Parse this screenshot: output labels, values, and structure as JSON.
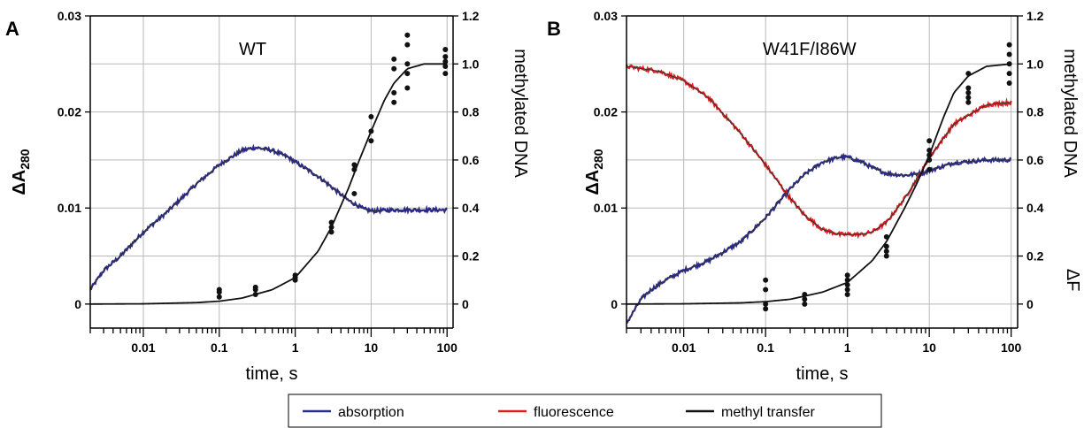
{
  "legend": {
    "items": [
      {
        "label": "absorption",
        "color": "#2b2b8f"
      },
      {
        "label": "fluorescence",
        "color": "#e02020"
      },
      {
        "label": "methyl transfer",
        "color": "#111111"
      }
    ]
  },
  "chart_data": [
    {
      "type": "line",
      "panel_label": "A",
      "annotation": "WT",
      "xlabel": "time, s",
      "xscale": "log",
      "xlim": [
        0.002,
        120
      ],
      "xticks": [
        0.01,
        0.1,
        1,
        10,
        100
      ],
      "xtick_labels": [
        "0.01",
        "0.1",
        "1",
        "10",
        "100"
      ],
      "ylabel_left": "ΔA",
      "ylabel_left_sub": "280",
      "ylabel_left_color": "#2b2b8f",
      "ylim_left": [
        -0.0025,
        0.03
      ],
      "yticks_left": [
        0,
        0.01,
        0.02,
        0.03
      ],
      "ytick_labels_left": [
        "0",
        "0.01",
        "0.02",
        "0.03"
      ],
      "ylabel_right": "methylated DNA",
      "ylabel_right2": "",
      "ylabel_right2_color": "#e02020",
      "ylim_right": [
        -0.1,
        1.2
      ],
      "yticks_right": [
        0,
        0.2,
        0.4,
        0.6,
        0.8,
        1.0,
        1.2
      ],
      "ytick_labels_right": [
        "0",
        "0.2",
        "0.4",
        "0.6",
        "0.8",
        "1.0",
        "1.2"
      ],
      "grid": true,
      "series": [
        {
          "kind": "absorption",
          "axis": "left",
          "noisy": true,
          "color": "#2b2b8f",
          "x": [
            0.002,
            0.003,
            0.005,
            0.01,
            0.02,
            0.05,
            0.1,
            0.2,
            0.3,
            0.5,
            0.8,
            1,
            2,
            3,
            5,
            8,
            10,
            20,
            50,
            100
          ],
          "y": [
            0.0015,
            0.0035,
            0.005,
            0.0075,
            0.0095,
            0.0125,
            0.0145,
            0.016,
            0.0163,
            0.016,
            0.0153,
            0.0148,
            0.0133,
            0.0122,
            0.0108,
            0.0099,
            0.0097,
            0.0098,
            0.0098,
            0.0098
          ]
        },
        {
          "kind": "methyl transfer",
          "axis": "right",
          "noisy": false,
          "color": "#111111",
          "x": [
            0.002,
            0.01,
            0.05,
            0.1,
            0.2,
            0.5,
            1,
            2,
            3,
            5,
            7,
            10,
            15,
            20,
            30,
            50,
            100
          ],
          "y": [
            0,
            0.001,
            0.006,
            0.012,
            0.025,
            0.06,
            0.11,
            0.22,
            0.32,
            0.48,
            0.6,
            0.72,
            0.85,
            0.92,
            0.98,
            1.0,
            1.0
          ]
        }
      ],
      "points": {
        "x": [
          0.1,
          0.1,
          0.1,
          0.3,
          0.3,
          0.3,
          1,
          1,
          1,
          3,
          3,
          3,
          6,
          6,
          6,
          10,
          10,
          10,
          20,
          20,
          20,
          20,
          30,
          30,
          30,
          30,
          30,
          95,
          95,
          95,
          95,
          95
        ],
        "y": [
          0.03,
          0.05,
          0.06,
          0.04,
          0.06,
          0.07,
          0.1,
          0.11,
          0.12,
          0.3,
          0.32,
          0.34,
          0.46,
          0.56,
          0.58,
          0.68,
          0.72,
          0.78,
          0.84,
          0.88,
          0.98,
          1.02,
          0.9,
          0.96,
          1.0,
          1.08,
          1.12,
          0.96,
          0.99,
          1.01,
          1.03,
          1.06
        ]
      }
    },
    {
      "type": "line",
      "panel_label": "B",
      "annotation": "W41F/I86W",
      "xlabel": "time, s",
      "xscale": "log",
      "xlim": [
        0.002,
        120
      ],
      "xticks": [
        0.01,
        0.1,
        1,
        10,
        100
      ],
      "xtick_labels": [
        "0.01",
        "0.1",
        "1",
        "10",
        "100"
      ],
      "ylabel_left": "ΔA",
      "ylabel_left_sub": "280",
      "ylabel_left_color": "#2b2b8f",
      "ylim_left": [
        -0.0025,
        0.03
      ],
      "yticks_left": [
        0,
        0.01,
        0.02,
        0.03
      ],
      "ytick_labels_left": [
        "0",
        "0.01",
        "0.02",
        "0.03"
      ],
      "ylabel_right": "methylated DNA",
      "ylabel_right2": "ΔF",
      "ylabel_right2_color": "#e02020",
      "ylim_right": [
        -0.1,
        1.2
      ],
      "yticks_right": [
        0,
        0.2,
        0.4,
        0.6,
        0.8,
        1.0,
        1.2
      ],
      "ytick_labels_right": [
        "0",
        "0.2",
        "0.4",
        "0.6",
        "0.8",
        "1.0",
        "1.2"
      ],
      "grid": true,
      "series": [
        {
          "kind": "absorption",
          "axis": "left",
          "noisy": true,
          "color": "#2b2b8f",
          "x": [
            0.002,
            0.003,
            0.004,
            0.006,
            0.01,
            0.02,
            0.05,
            0.1,
            0.2,
            0.3,
            0.5,
            0.8,
            1,
            1.5,
            2,
            3,
            5,
            8,
            10,
            20,
            50,
            100
          ],
          "y": [
            -0.002,
            0.0005,
            0.0015,
            0.0025,
            0.0035,
            0.0045,
            0.0065,
            0.009,
            0.012,
            0.0135,
            0.0148,
            0.0153,
            0.0153,
            0.0148,
            0.0142,
            0.0136,
            0.0134,
            0.0136,
            0.0139,
            0.0147,
            0.015,
            0.015
          ]
        },
        {
          "kind": "fluorescence",
          "axis": "right",
          "noisy": true,
          "color": "#e02020",
          "x": [
            0.002,
            0.005,
            0.01,
            0.02,
            0.05,
            0.1,
            0.2,
            0.3,
            0.5,
            0.8,
            1,
            1.5,
            2,
            3,
            5,
            8,
            10,
            20,
            50,
            100
          ],
          "y": [
            0.99,
            0.97,
            0.93,
            0.86,
            0.71,
            0.58,
            0.44,
            0.37,
            0.31,
            0.29,
            0.29,
            0.29,
            0.3,
            0.34,
            0.44,
            0.55,
            0.61,
            0.75,
            0.83,
            0.84
          ]
        },
        {
          "kind": "methyl transfer",
          "axis": "right",
          "noisy": false,
          "color": "#111111",
          "x": [
            0.002,
            0.01,
            0.05,
            0.1,
            0.2,
            0.5,
            1,
            2,
            3,
            5,
            7,
            10,
            15,
            20,
            30,
            50,
            100
          ],
          "y": [
            0,
            0.001,
            0.005,
            0.01,
            0.02,
            0.05,
            0.09,
            0.18,
            0.26,
            0.4,
            0.5,
            0.62,
            0.78,
            0.88,
            0.95,
            0.99,
            1.0
          ]
        }
      ],
      "points": {
        "x": [
          0.1,
          0.1,
          0.1,
          0.1,
          0.3,
          0.3,
          0.3,
          1,
          1,
          1,
          1,
          1,
          3,
          3,
          3,
          3,
          10,
          10,
          10,
          10,
          10,
          30,
          30,
          30,
          30,
          30,
          95,
          95,
          95,
          95,
          95
        ],
        "y": [
          -0.02,
          0.0,
          0.06,
          0.1,
          0.0,
          0.02,
          0.04,
          0.04,
          0.06,
          0.08,
          0.1,
          0.12,
          0.2,
          0.22,
          0.24,
          0.28,
          0.56,
          0.6,
          0.62,
          0.64,
          0.68,
          0.84,
          0.86,
          0.88,
          0.9,
          0.96,
          0.92,
          0.96,
          1.0,
          1.04,
          1.08
        ]
      }
    }
  ]
}
